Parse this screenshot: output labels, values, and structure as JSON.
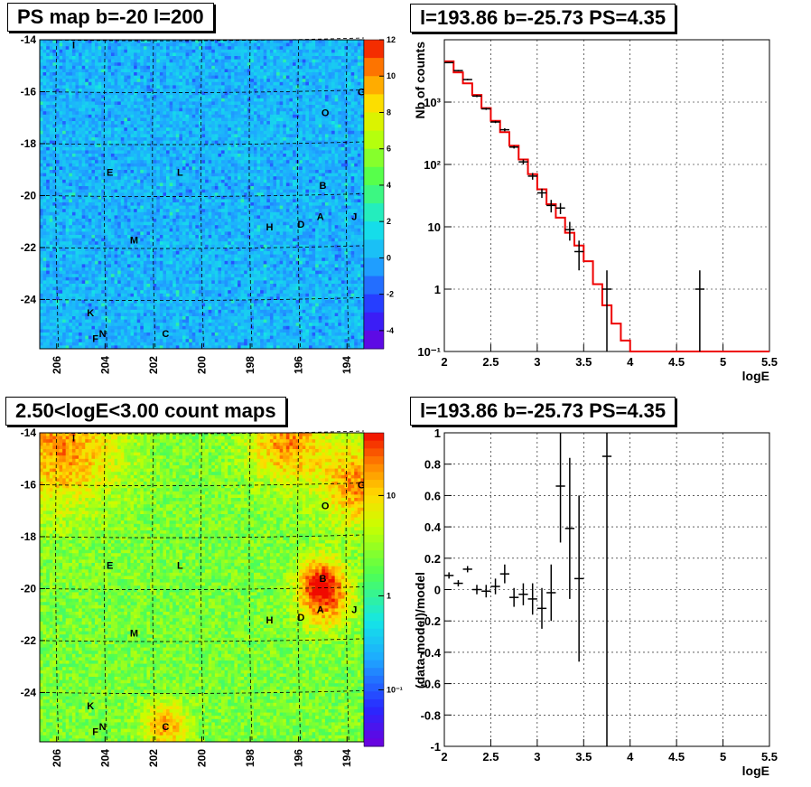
{
  "titles": {
    "tl": "PS map b=-20 l=200",
    "tr": "l=193.86 b=-25.73 PS=4.35",
    "bl": "2.50<logE<3.00 count maps",
    "br": "l=193.86 b=-25.73 PS=4.35"
  },
  "map_axes": {
    "y_ticks": [
      "-14",
      "-16",
      "-18",
      "-20",
      "-22",
      "-24"
    ],
    "x_ticks": [
      "206",
      "204",
      "202",
      "200",
      "198",
      "196",
      "194"
    ]
  },
  "colorbar_ps": [
    "12",
    "10",
    "8",
    "6",
    "4",
    "2",
    "0",
    "-2",
    "-4"
  ],
  "colorbar_counts": [
    "10",
    "1",
    "10⁻¹"
  ],
  "sources": [
    {
      "label": "I",
      "l": 205.3,
      "b": -14.2
    },
    {
      "label": "G",
      "l": 193.4,
      "b": -16.0
    },
    {
      "label": "O",
      "l": 194.9,
      "b": -16.8
    },
    {
      "label": "E",
      "l": 203.8,
      "b": -19.1
    },
    {
      "label": "L",
      "l": 200.9,
      "b": -19.1
    },
    {
      "label": "B",
      "l": 195.0,
      "b": -19.6
    },
    {
      "label": "A",
      "l": 195.1,
      "b": -20.8
    },
    {
      "label": "J",
      "l": 193.7,
      "b": -20.8
    },
    {
      "label": "D",
      "l": 195.9,
      "b": -21.1
    },
    {
      "label": "H",
      "l": 197.2,
      "b": -21.2
    },
    {
      "label": "M",
      "l": 202.8,
      "b": -21.7
    },
    {
      "label": "K",
      "l": 204.6,
      "b": -24.5
    },
    {
      "label": "N",
      "l": 204.1,
      "b": -25.3
    },
    {
      "label": "F",
      "l": 204.4,
      "b": -25.5
    },
    {
      "label": "C",
      "l": 201.5,
      "b": -25.3
    }
  ],
  "chart_data": [
    {
      "type": "heatmap",
      "title": "PS map b=-20 l=200",
      "x_range": [
        206.7,
        193.3
      ],
      "y_range": [
        -25.9,
        -14.0
      ],
      "z_range": [
        -5,
        12
      ],
      "colorbar_labels": [
        "12",
        "10",
        "8",
        "6",
        "4",
        "2",
        "0",
        "-2",
        "-4"
      ]
    },
    {
      "type": "line",
      "title": "l=193.86 b=-25.73 PS=4.35",
      "xlabel": "logE",
      "ylabel": "Nb of counts",
      "xlim": [
        2,
        5.5
      ],
      "ylim": [
        0.1,
        10000
      ],
      "y_scale": "log",
      "x_ticks": [
        "2",
        "2.5",
        "3",
        "3.5",
        "4",
        "4.5",
        "5",
        "5.5"
      ],
      "y_ticks": [
        "10⁻¹",
        "1",
        "10",
        "10²",
        "10³"
      ],
      "model": {
        "edges": [
          2.0,
          2.1,
          2.2,
          2.3,
          2.4,
          2.5,
          2.6,
          2.7,
          2.8,
          2.9,
          3.0,
          3.1,
          3.2,
          3.3,
          3.4,
          3.5,
          3.6,
          3.7,
          3.8,
          3.9,
          4.0,
          5.5
        ],
        "values": [
          4500,
          3000,
          2000,
          1300,
          800,
          500,
          330,
          200,
          120,
          70,
          40,
          23,
          14,
          8,
          5,
          2.8,
          1.2,
          0.55,
          0.28,
          0.15,
          0.1
        ]
      },
      "data": {
        "x": [
          2.05,
          2.15,
          2.25,
          2.35,
          2.45,
          2.55,
          2.65,
          2.75,
          2.85,
          2.95,
          3.05,
          3.15,
          3.25,
          3.35,
          3.45,
          3.75,
          4.75
        ],
        "y": [
          4300,
          3200,
          2300,
          1250,
          780,
          480,
          360,
          190,
          110,
          65,
          35,
          22,
          20,
          9,
          4,
          1,
          1
        ],
        "err_lo": [
          4200,
          3120,
          2240,
          1200,
          750,
          460,
          340,
          180,
          100,
          57,
          29,
          17,
          16,
          6,
          2,
          0,
          0
        ],
        "err_hi": [
          4400,
          3280,
          2360,
          1300,
          810,
          500,
          380,
          200,
          120,
          73,
          41,
          27,
          24,
          12,
          6,
          2,
          2
        ]
      }
    },
    {
      "type": "heatmap",
      "title": "2.50<logE<3.00 count maps",
      "x_range": [
        206.7,
        193.3
      ],
      "y_range": [
        -25.9,
        -14.0
      ],
      "z_scale": "log",
      "colorbar_labels": [
        "10",
        "1",
        "10⁻¹"
      ]
    },
    {
      "type": "scatter",
      "title": "l=193.86 b=-25.73 PS=4.35",
      "xlabel": "logE",
      "ylabel": "(data-model)/model",
      "xlim": [
        2,
        5.5
      ],
      "ylim": [
        -1,
        1
      ],
      "x_ticks": [
        "2",
        "2.5",
        "3",
        "3.5",
        "4",
        "4.5",
        "5",
        "5.5"
      ],
      "y_ticks": [
        "-1",
        "-0.8",
        "-0.6",
        "-0.4",
        "-0.2",
        "0",
        "0.2",
        "0.4",
        "0.6",
        "0.8",
        "1"
      ],
      "x": [
        2.05,
        2.15,
        2.25,
        2.35,
        2.45,
        2.55,
        2.65,
        2.75,
        2.85,
        2.95,
        3.05,
        3.15,
        3.25,
        3.35,
        3.45,
        3.75
      ],
      "y": [
        0.09,
        0.04,
        0.13,
        0.0,
        -0.01,
        0.02,
        0.1,
        -0.05,
        -0.03,
        -0.06,
        -0.12,
        -0.02,
        0.66,
        0.39,
        0.07,
        0.85
      ],
      "err": [
        0.02,
        0.02,
        0.02,
        0.03,
        0.04,
        0.05,
        0.06,
        0.06,
        0.07,
        0.1,
        0.13,
        0.18,
        0.36,
        0.45,
        0.53,
        1.85
      ]
    }
  ]
}
